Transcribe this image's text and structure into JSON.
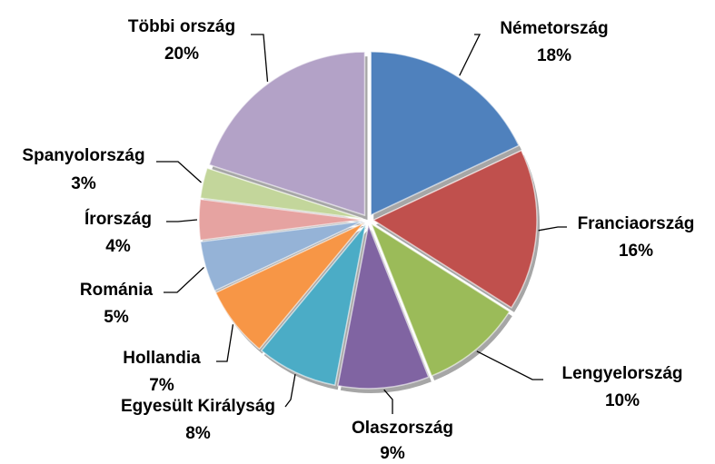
{
  "chart_data": {
    "type": "pie",
    "categories": [
      "Németország",
      "Franciaország",
      "Lengyelország",
      "Olaszország",
      "Egyesült Királyság",
      "Hollandia",
      "Románia",
      "Írország",
      "Spanyolország",
      "Többi ország"
    ],
    "values": [
      18,
      16,
      10,
      9,
      8,
      7,
      5,
      4,
      3,
      20
    ],
    "value_labels": [
      "18%",
      "16%",
      "10%",
      "9%",
      "8%",
      "7%",
      "5%",
      "4%",
      "3%",
      "20%"
    ],
    "colors": [
      "#4f81bd",
      "#c0504d",
      "#9bbb59",
      "#8064a2",
      "#4bacc6",
      "#f79646",
      "#95b3d7",
      "#e6a3a1",
      "#c3d69b",
      "#b3a2c7"
    ]
  }
}
